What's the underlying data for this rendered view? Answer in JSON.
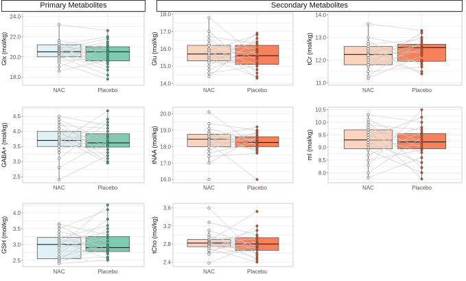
{
  "headers": {
    "primary": "Primary Metabolites",
    "secondary": "Secondary Metabolites"
  },
  "colors": {
    "nac_blue": "#dff1f5",
    "placebo_teal": "#7ecbb2",
    "nac_peach": "#fbd3bf",
    "placebo_orange": "#f7815a",
    "grid": "#e4e4e4",
    "pair_line": "#c9c9c9"
  },
  "chart_data": [
    {
      "type": "box",
      "id": "glx",
      "ylabel": "Glx (mol/kg)",
      "ticks": [
        "24.0",
        "22.0",
        "20.0",
        "18.0"
      ],
      "tick_values": [
        24,
        22,
        20,
        18
      ],
      "ylim": [
        17.2,
        24.4
      ],
      "categories": [
        "NAC",
        "Placebo"
      ],
      "palette": "blue",
      "boxes": [
        {
          "q1": 20.0,
          "median": 20.5,
          "q3": 21.2,
          "wlo": 18.6,
          "whi": 23.2
        },
        {
          "q1": 19.6,
          "median": 20.5,
          "q3": 21.0,
          "wlo": 17.8,
          "whi": 22.6
        }
      ],
      "points_nac": [
        23.2,
        21.6,
        21.4,
        21.2,
        21.0,
        20.9,
        20.8,
        20.7,
        20.6,
        20.5,
        20.4,
        20.3,
        20.2,
        20.1,
        20.0,
        19.8,
        19.6,
        19.4,
        19.0,
        18.6
      ],
      "points_placebo": [
        22.6,
        22.0,
        21.8,
        21.5,
        21.3,
        21.1,
        21.0,
        20.8,
        20.6,
        20.5,
        20.3,
        20.1,
        19.9,
        19.7,
        19.5,
        19.3,
        19.0,
        18.7,
        18.2,
        17.8
      ]
    },
    {
      "type": "box",
      "id": "gaba",
      "ylabel": "GABA+ (mol/kg)",
      "ticks": [
        "4.5",
        "4.0",
        "3.5",
        "3.0",
        "2.5"
      ],
      "tick_values": [
        4.5,
        4.0,
        3.5,
        3.0,
        2.5
      ],
      "ylim": [
        2.3,
        4.8
      ],
      "categories": [
        "NAC",
        "Placebo"
      ],
      "palette": "blue",
      "boxes": [
        {
          "q1": 3.5,
          "median": 3.7,
          "q3": 4.0,
          "wlo": 2.4,
          "whi": 4.5
        },
        {
          "q1": 3.48,
          "median": 3.62,
          "q3": 3.92,
          "wlo": 2.95,
          "whi": 4.68
        }
      ],
      "points_nac": [
        4.5,
        4.4,
        4.3,
        4.2,
        4.1,
        4.0,
        3.95,
        3.9,
        3.8,
        3.75,
        3.7,
        3.65,
        3.6,
        3.55,
        3.5,
        3.4,
        3.3,
        3.1,
        2.8,
        2.4
      ],
      "points_placebo": [
        4.68,
        4.4,
        4.3,
        4.2,
        4.1,
        4.0,
        3.9,
        3.85,
        3.8,
        3.7,
        3.65,
        3.6,
        3.55,
        3.5,
        3.4,
        3.3,
        3.2,
        3.1,
        3.0,
        2.95
      ]
    },
    {
      "type": "box",
      "id": "gsh",
      "ylabel": "GSH (mol/kg)",
      "ticks": [
        "4.0",
        "3.5",
        "3.0",
        "2.5"
      ],
      "tick_values": [
        4.0,
        3.5,
        3.0,
        2.5
      ],
      "ylim": [
        2.3,
        4.3
      ],
      "categories": [
        "NAC",
        "Placebo"
      ],
      "palette": "blue",
      "boxes": [
        {
          "q1": 2.55,
          "median": 3.0,
          "q3": 3.22,
          "wlo": 2.4,
          "whi": 3.65
        },
        {
          "q1": 2.78,
          "median": 2.9,
          "q3": 3.25,
          "wlo": 2.5,
          "whi": 4.25
        }
      ],
      "points_nac": [
        3.65,
        3.6,
        3.5,
        3.4,
        3.3,
        3.2,
        3.15,
        3.1,
        3.05,
        3.0,
        2.95,
        2.9,
        2.8,
        2.7,
        2.6,
        2.55,
        2.5,
        2.45,
        2.4
      ],
      "points_placebo": [
        4.25,
        4.1,
        3.8,
        3.6,
        3.5,
        3.4,
        3.3,
        3.2,
        3.1,
        3.0,
        2.95,
        2.9,
        2.85,
        2.8,
        2.75,
        2.7,
        2.6,
        2.55,
        2.5
      ]
    },
    {
      "type": "box",
      "id": "glu",
      "ylabel": "Glu (mol/kg)",
      "ticks": [
        "18.0",
        "17.0",
        "16.0",
        "15.0",
        "14.0"
      ],
      "tick_values": [
        18,
        17,
        16,
        15,
        14
      ],
      "ylim": [
        13.9,
        18.1
      ],
      "categories": [
        "NAC",
        "Placebo"
      ],
      "palette": "orange",
      "boxes": [
        {
          "q1": 15.3,
          "median": 15.7,
          "q3": 16.2,
          "wlo": 14.4,
          "whi": 17.8
        },
        {
          "q1": 15.1,
          "median": 15.6,
          "q3": 16.2,
          "wlo": 14.3,
          "whi": 16.9
        }
      ],
      "points_nac": [
        17.8,
        17.0,
        16.7,
        16.5,
        16.3,
        16.2,
        16.0,
        15.9,
        15.8,
        15.7,
        15.6,
        15.5,
        15.4,
        15.3,
        15.2,
        15.0,
        14.8,
        14.6,
        14.4
      ],
      "points_placebo": [
        16.9,
        16.8,
        16.6,
        16.4,
        16.3,
        16.2,
        16.0,
        15.9,
        15.8,
        15.6,
        15.5,
        15.4,
        15.2,
        15.1,
        15.0,
        14.8,
        14.6,
        14.4,
        14.3
      ]
    },
    {
      "type": "box",
      "id": "tnaa",
      "ylabel": "tNAA (mol/kg)",
      "ticks": [
        "20.0",
        "19.0",
        "18.0",
        "17.0",
        "16.0"
      ],
      "tick_values": [
        20,
        19,
        18,
        17,
        16
      ],
      "ylim": [
        15.8,
        20.4
      ],
      "categories": [
        "NAC",
        "Placebo"
      ],
      "palette": "orange",
      "boxes": [
        {
          "q1": 18.0,
          "median": 18.45,
          "q3": 18.75,
          "wlo": 17.0,
          "whi": 19.4
        },
        {
          "q1": 18.0,
          "median": 18.25,
          "q3": 18.6,
          "wlo": 17.6,
          "whi": 19.2
        }
      ],
      "points_nac": [
        20.1,
        19.4,
        19.1,
        18.9,
        18.8,
        18.7,
        18.6,
        18.5,
        18.45,
        18.4,
        18.3,
        18.2,
        18.1,
        18.0,
        17.8,
        17.6,
        17.4,
        17.0,
        16.0
      ],
      "points_placebo": [
        19.2,
        19.0,
        18.9,
        18.8,
        18.7,
        18.6,
        18.5,
        18.4,
        18.3,
        18.25,
        18.2,
        18.1,
        18.0,
        17.9,
        17.8,
        17.7,
        17.6,
        16.0
      ]
    },
    {
      "type": "box",
      "id": "tcho",
      "ylabel": "tCho (mol/kg)",
      "ticks": [
        "3.6",
        "3.2",
        "2.8",
        "2.4"
      ],
      "tick_values": [
        3.6,
        3.2,
        2.8,
        2.4
      ],
      "ylim": [
        2.3,
        3.7
      ],
      "categories": [
        "NAC",
        "Placebo"
      ],
      "palette": "orange",
      "boxes": [
        {
          "q1": 2.74,
          "median": 2.82,
          "q3": 2.9,
          "wlo": 2.58,
          "whi": 3.1
        },
        {
          "q1": 2.66,
          "median": 2.8,
          "q3": 2.94,
          "wlo": 2.4,
          "whi": 3.2
        }
      ],
      "points_nac": [
        3.6,
        3.28,
        3.1,
        3.0,
        2.95,
        2.9,
        2.87,
        2.85,
        2.83,
        2.82,
        2.8,
        2.78,
        2.76,
        2.74,
        2.7,
        2.66,
        2.6,
        2.58,
        2.38
      ],
      "points_placebo": [
        3.52,
        3.2,
        3.1,
        3.0,
        2.95,
        2.9,
        2.85,
        2.82,
        2.8,
        2.78,
        2.75,
        2.72,
        2.7,
        2.66,
        2.6,
        2.55,
        2.5,
        2.45,
        2.4
      ]
    },
    {
      "type": "box",
      "id": "tcr",
      "ylabel": "tCr (mol/kg)",
      "ticks": [
        "14.0",
        "13.0",
        "12.0",
        "11.0"
      ],
      "tick_values": [
        14,
        13,
        12,
        11
      ],
      "ylim": [
        10.9,
        14.1
      ],
      "categories": [
        "NAC",
        "Placebo"
      ],
      "palette": "orange",
      "boxes": [
        {
          "q1": 11.8,
          "median": 12.25,
          "q3": 12.6,
          "wlo": 11.2,
          "whi": 13.6
        },
        {
          "q1": 11.95,
          "median": 12.55,
          "q3": 12.7,
          "wlo": 11.4,
          "whi": 13.3
        }
      ],
      "points_nac": [
        13.6,
        13.0,
        12.8,
        12.7,
        12.6,
        12.5,
        12.4,
        12.3,
        12.25,
        12.2,
        12.1,
        12.0,
        11.9,
        11.8,
        11.7,
        11.5,
        11.3,
        11.2
      ],
      "points_placebo": [
        13.3,
        13.2,
        13.0,
        12.9,
        12.8,
        12.7,
        12.6,
        12.55,
        12.5,
        12.4,
        12.3,
        12.2,
        12.0,
        11.9,
        11.8,
        11.7,
        11.5,
        11.4
      ]
    },
    {
      "type": "box",
      "id": "mi",
      "ylabel": "mI (mol/kg)",
      "ticks": [
        "10.5",
        "10.0",
        "9.5",
        "9.0",
        "8.5",
        "8.0"
      ],
      "tick_values": [
        10.5,
        10.0,
        9.5,
        9.0,
        8.5,
        8.0
      ],
      "ylim": [
        7.6,
        10.6
      ],
      "categories": [
        "NAC",
        "Placebo"
      ],
      "palette": "orange",
      "boxes": [
        {
          "q1": 8.95,
          "median": 9.3,
          "q3": 9.7,
          "wlo": 7.8,
          "whi": 10.3
        },
        {
          "q1": 8.95,
          "median": 9.22,
          "q3": 9.55,
          "wlo": 7.75,
          "whi": 10.5
        }
      ],
      "points_nac": [
        10.3,
        10.1,
        10.0,
        9.9,
        9.8,
        9.7,
        9.6,
        9.5,
        9.4,
        9.3,
        9.2,
        9.1,
        9.0,
        8.9,
        8.7,
        8.5,
        8.3,
        8.0,
        7.8
      ],
      "points_placebo": [
        10.5,
        10.2,
        10.0,
        9.8,
        9.7,
        9.6,
        9.5,
        9.4,
        9.3,
        9.2,
        9.1,
        9.0,
        8.9,
        8.8,
        8.6,
        8.4,
        8.2,
        8.0,
        7.75
      ]
    }
  ]
}
